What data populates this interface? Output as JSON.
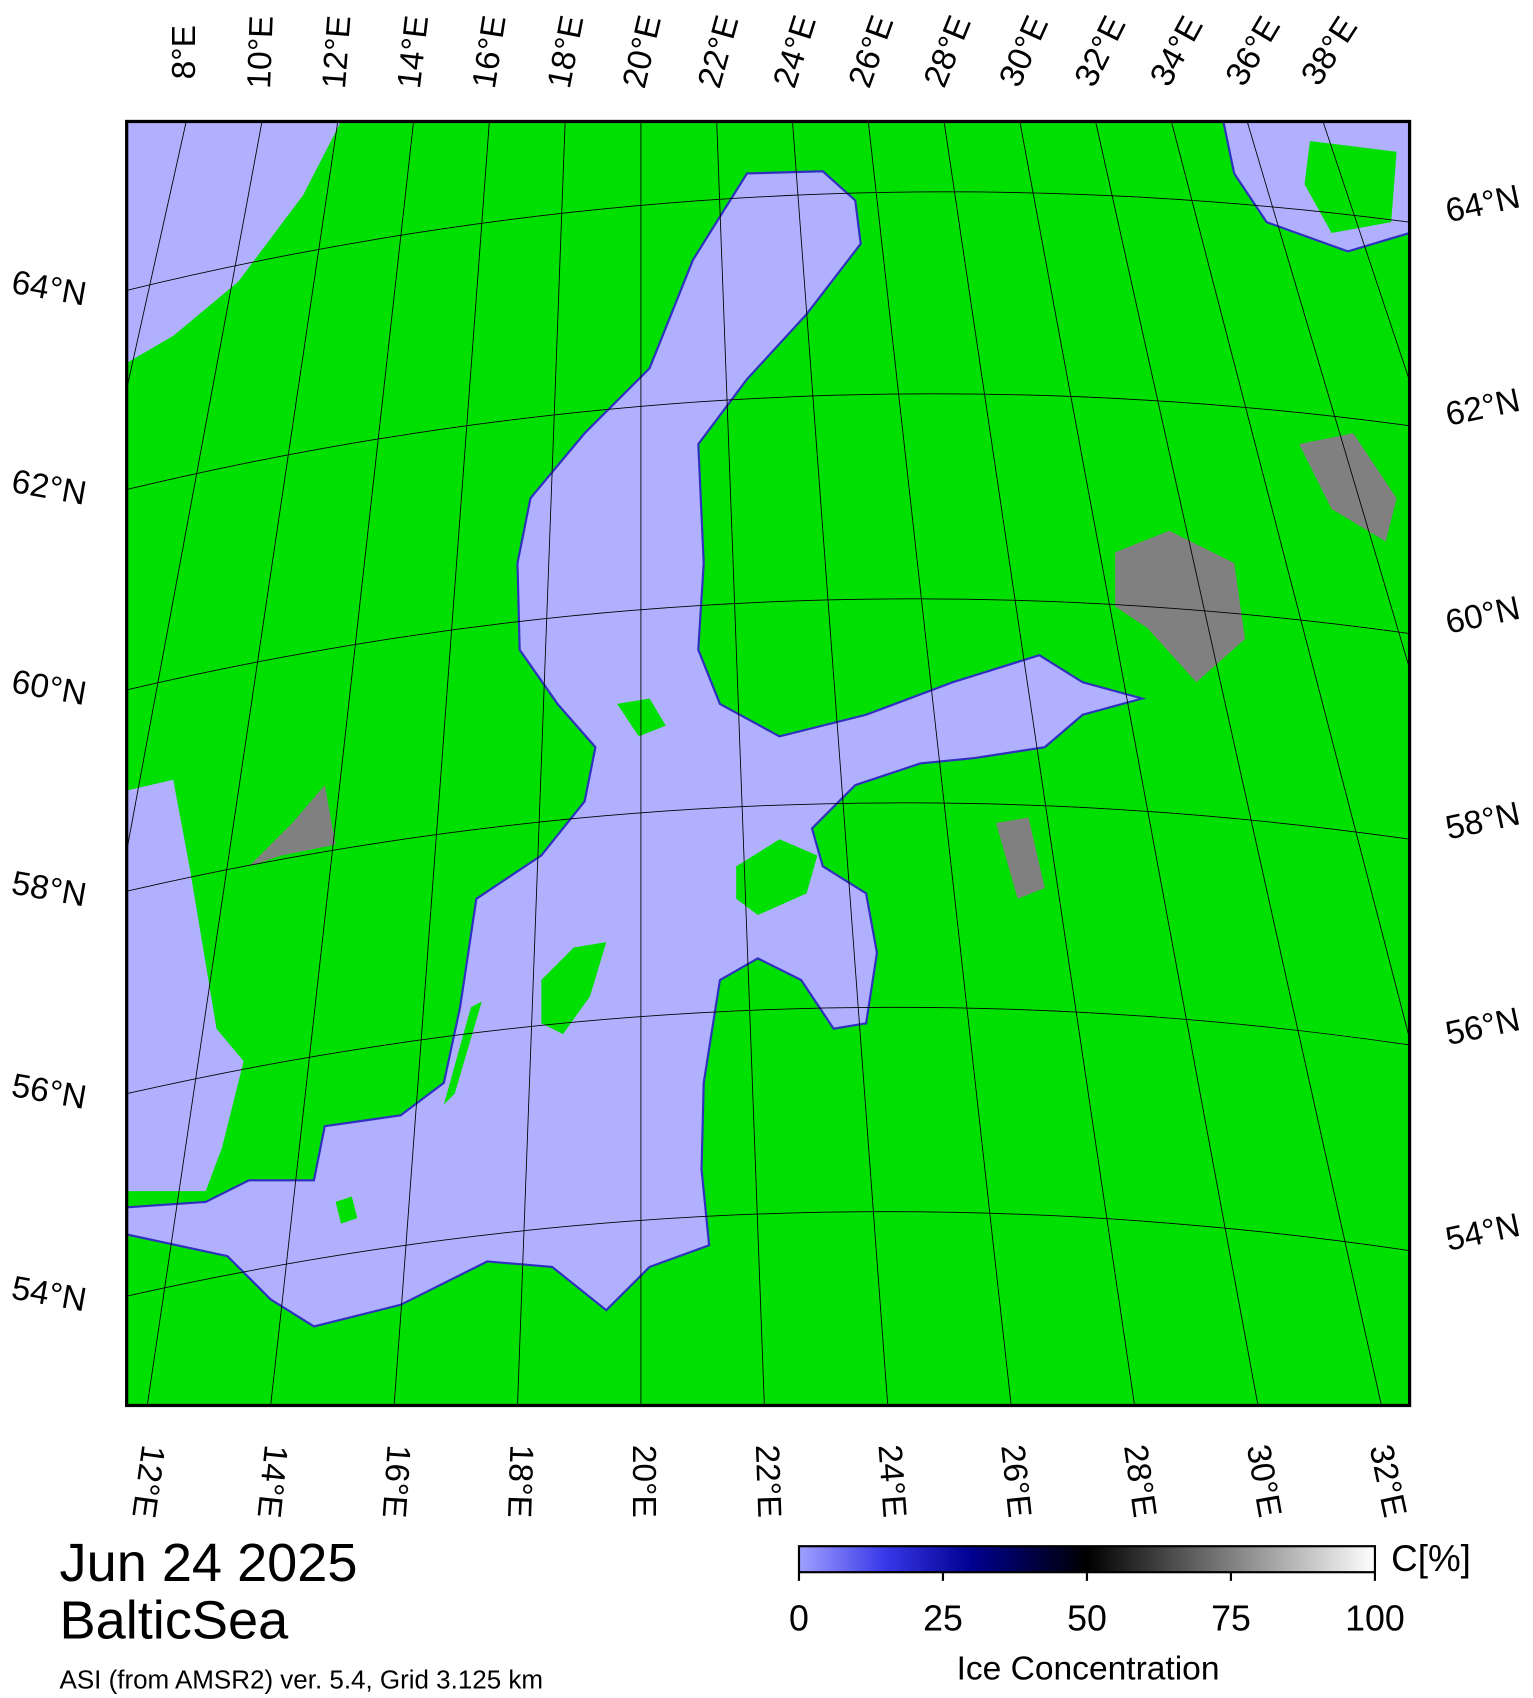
{
  "map": {
    "top_lon_labels": [
      "8°E",
      "10°E",
      "12°E",
      "14°E",
      "16°E",
      "18°E",
      "20°E",
      "22°E",
      "24°E",
      "26°E",
      "28°E",
      "30°E",
      "32°E",
      "34°E",
      "36°E",
      "38°E"
    ],
    "bottom_lon_labels": [
      "12°E",
      "14°E",
      "16°E",
      "18°E",
      "20°E",
      "22°E",
      "24°E",
      "26°E",
      "28°E",
      "30°E",
      "32°E"
    ],
    "left_lat_labels": [
      "64°N",
      "62°N",
      "60°N",
      "58°N",
      "56°N",
      "54°N"
    ],
    "right_lat_labels": [
      "64°N",
      "62°N",
      "60°N",
      "58°N",
      "56°N",
      "54°N"
    ]
  },
  "footer": {
    "date": "Jun 24 2025",
    "region": "BalticSea",
    "source": "ASI (from AMSR2) ver. 5.4,  Grid 3.125 km"
  },
  "colorbar": {
    "label": "Ice Concentration",
    "unit": "C[%]",
    "lim": [
      0,
      100
    ],
    "ticks": [
      0,
      25,
      50,
      75,
      100
    ]
  }
}
